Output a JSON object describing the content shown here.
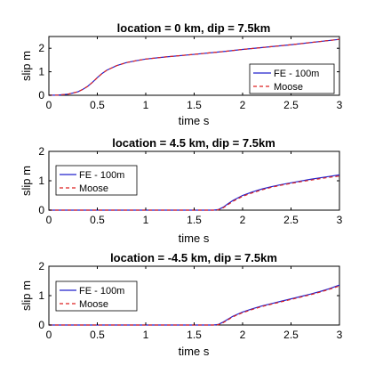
{
  "chart_data": [
    {
      "type": "line",
      "title": "location = 0 km, dip = 7.5km",
      "xlabel": "time s",
      "ylabel": "slip m",
      "xlim": [
        0,
        3
      ],
      "ylim": [
        0,
        2.5
      ],
      "xticks": [
        "0",
        "0.5",
        "1",
        "1.5",
        "2",
        "2.5",
        "3"
      ],
      "yticks": [
        "0",
        "1",
        "2"
      ],
      "legend_position": "bottom-right",
      "series": [
        {
          "name": "FE - 100m",
          "color": "#2222cc",
          "dash": "solid",
          "x": [
            0,
            0.1,
            0.2,
            0.3,
            0.35,
            0.4,
            0.45,
            0.5,
            0.55,
            0.6,
            0.7,
            0.8,
            0.9,
            1.0,
            1.2,
            1.5,
            1.8,
            2.0,
            2.5,
            3.0
          ],
          "y": [
            0,
            0.01,
            0.05,
            0.15,
            0.25,
            0.38,
            0.55,
            0.75,
            0.93,
            1.07,
            1.26,
            1.39,
            1.47,
            1.54,
            1.63,
            1.74,
            1.86,
            1.95,
            2.15,
            2.38
          ]
        },
        {
          "name": "Moose",
          "color": "#dd2222",
          "dash": "dashed",
          "x": [
            0,
            0.1,
            0.2,
            0.3,
            0.35,
            0.4,
            0.45,
            0.5,
            0.55,
            0.6,
            0.7,
            0.8,
            0.9,
            1.0,
            1.2,
            1.5,
            1.8,
            2.0,
            2.5,
            3.0
          ],
          "y": [
            0,
            0.01,
            0.05,
            0.15,
            0.25,
            0.38,
            0.55,
            0.75,
            0.93,
            1.07,
            1.26,
            1.39,
            1.47,
            1.54,
            1.63,
            1.74,
            1.86,
            1.95,
            2.15,
            2.38
          ]
        }
      ]
    },
    {
      "type": "line",
      "title": "location = 4.5 km, dip = 7.5km",
      "xlabel": "time s",
      "ylabel": "slip m",
      "xlim": [
        0,
        3
      ],
      "ylim": [
        0,
        2
      ],
      "xticks": [
        "0",
        "0.5",
        "1",
        "1.5",
        "2",
        "2.5",
        "3"
      ],
      "yticks": [
        "0",
        "1",
        "2"
      ],
      "legend_position": "middle-left",
      "series": [
        {
          "name": "FE - 100m",
          "color": "#2222cc",
          "dash": "solid",
          "x": [
            0,
            1.0,
            1.7,
            1.75,
            1.8,
            1.85,
            1.9,
            2.0,
            2.1,
            2.2,
            2.3,
            2.4,
            2.5,
            2.6,
            2.7,
            2.8,
            2.9,
            3.0
          ],
          "y": [
            0,
            0,
            0,
            0.02,
            0.1,
            0.22,
            0.33,
            0.5,
            0.62,
            0.72,
            0.8,
            0.87,
            0.93,
            0.99,
            1.05,
            1.1,
            1.15,
            1.2
          ]
        },
        {
          "name": "Moose",
          "color": "#dd2222",
          "dash": "dashed",
          "x": [
            0,
            1.0,
            1.7,
            1.75,
            1.8,
            1.85,
            1.9,
            2.0,
            2.1,
            2.2,
            2.3,
            2.4,
            2.5,
            2.6,
            2.7,
            2.8,
            2.9,
            3.0
          ],
          "y": [
            0,
            0,
            0,
            0.01,
            0.08,
            0.19,
            0.3,
            0.47,
            0.59,
            0.69,
            0.78,
            0.85,
            0.91,
            0.97,
            1.02,
            1.07,
            1.12,
            1.16
          ]
        }
      ]
    },
    {
      "type": "line",
      "title": "location = -4.5 km, dip = 7.5km",
      "xlabel": "time s",
      "ylabel": "slip m",
      "xlim": [
        0,
        3
      ],
      "ylim": [
        0,
        2
      ],
      "xticks": [
        "0",
        "0.5",
        "1",
        "1.5",
        "2",
        "2.5",
        "3"
      ],
      "yticks": [
        "0",
        "1",
        "2"
      ],
      "legend_position": "middle-left",
      "series": [
        {
          "name": "FE - 100m",
          "color": "#2222cc",
          "dash": "solid",
          "x": [
            0,
            1.0,
            1.7,
            1.75,
            1.8,
            1.85,
            1.9,
            2.0,
            2.1,
            2.2,
            2.3,
            2.4,
            2.5,
            2.6,
            2.7,
            2.8,
            2.9,
            3.0
          ],
          "y": [
            0,
            0,
            0,
            0.02,
            0.1,
            0.2,
            0.3,
            0.44,
            0.55,
            0.65,
            0.73,
            0.81,
            0.89,
            0.97,
            1.05,
            1.14,
            1.24,
            1.36
          ]
        },
        {
          "name": "Moose",
          "color": "#dd2222",
          "dash": "dashed",
          "x": [
            0,
            1.0,
            1.7,
            1.75,
            1.8,
            1.85,
            1.9,
            2.0,
            2.1,
            2.2,
            2.3,
            2.4,
            2.5,
            2.6,
            2.7,
            2.8,
            2.9,
            3.0
          ],
          "y": [
            0,
            0,
            0,
            0.01,
            0.08,
            0.18,
            0.28,
            0.42,
            0.53,
            0.63,
            0.71,
            0.79,
            0.87,
            0.95,
            1.03,
            1.12,
            1.22,
            1.33
          ]
        }
      ]
    }
  ]
}
